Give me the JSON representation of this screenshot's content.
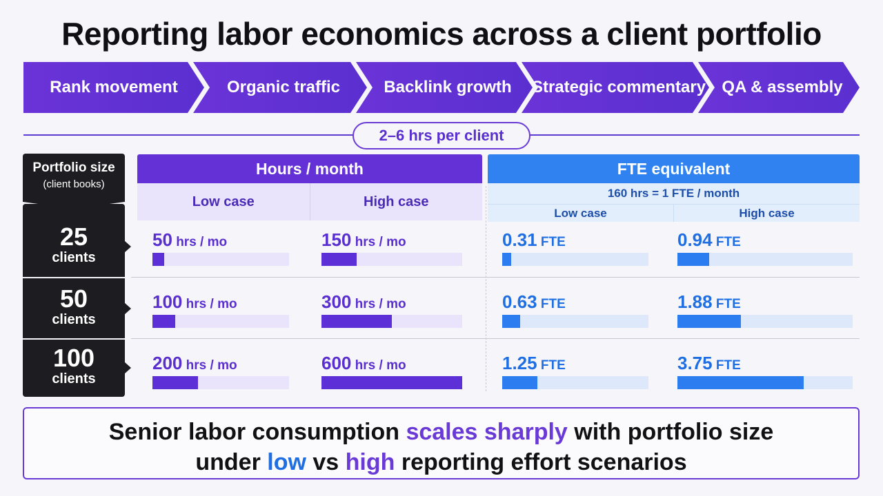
{
  "title": "Reporting labor economics across a client portfolio",
  "steps": [
    "Rank movement",
    "Organic traffic",
    "Backlink growth",
    "Strategic commentary",
    "QA & assembly"
  ],
  "time_pill": "2–6 hrs per client",
  "portfolio_header": {
    "line1": "Portfolio size",
    "line2": "(client books)"
  },
  "hours_header": "Hours / month",
  "fte_header": "FTE equivalent",
  "fte_note": "160 hrs = 1 FTE / month",
  "case_labels": {
    "low": "Low case",
    "high": "High case"
  },
  "units": {
    "hours": "hrs / mo",
    "fte": "FTE",
    "clients": "clients"
  },
  "colors": {
    "purple": "#5d2fd6",
    "blue": "#2c7ef0",
    "dark": "#1c1c21"
  },
  "chart_data": {
    "type": "table",
    "rows": [
      {
        "clients": "25",
        "hours_low": 50,
        "hours_high": 150,
        "fte_low": "0.31",
        "fte_high": "0.94"
      },
      {
        "clients": "50",
        "hours_low": 100,
        "hours_high": 300,
        "fte_low": "0.63",
        "fte_high": "1.88"
      },
      {
        "clients": "100",
        "hours_low": 200,
        "hours_high": 600,
        "fte_low": "1.25",
        "fte_high": "3.75"
      }
    ],
    "hours_bar_max": 600,
    "fte_bar_max": 5.2
  },
  "summary": {
    "line1_a": "Senior labor consumption ",
    "line1_b": "scales sharply",
    "line1_c": " with portfolio size",
    "line2_a": "under ",
    "line2_b": "low",
    "line2_c": " vs ",
    "line2_d": "high",
    "line2_e": " reporting effort scenarios"
  }
}
